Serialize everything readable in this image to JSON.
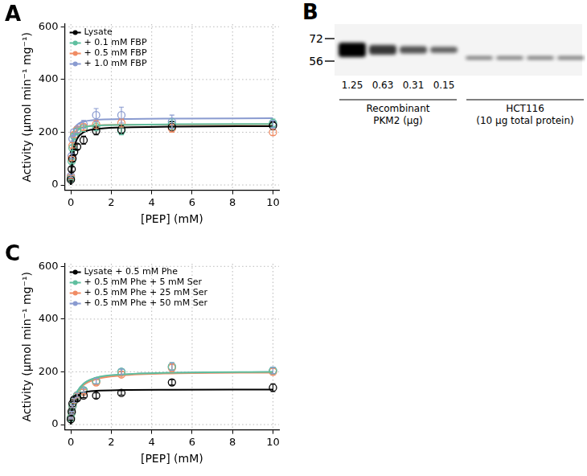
{
  "chart_data": [
    {
      "panel": "A",
      "type": "scatter",
      "x_label": "[PEP] (mM)",
      "y_label": "Activity (μmol min⁻¹ mg⁻¹)",
      "x": [
        0,
        0.04,
        0.08,
        0.16,
        0.31,
        0.63,
        1.25,
        2.5,
        5,
        10
      ],
      "xlim": [
        -0.3,
        10.3
      ],
      "xticks": [
        0,
        2,
        4,
        6,
        8,
        10
      ],
      "ylim": [
        -20,
        610
      ],
      "yticks": [
        0,
        200,
        400,
        600
      ],
      "grid": true,
      "legend": "top-left",
      "series": [
        {
          "name": "Lysate",
          "color": "#000000",
          "marker": "circle",
          "line_style": "solid",
          "values": [
            20,
            60,
            100,
            125,
            145,
            170,
            205,
            210,
            220,
            225
          ],
          "errors": [
            5,
            8,
            10,
            10,
            10,
            15,
            15,
            15,
            20,
            15
          ],
          "fit": [
            0,
            55,
            95,
            140,
            175,
            200,
            212,
            218,
            221,
            223
          ]
        },
        {
          "name": "+ 0.1 mM FBP",
          "color": "#5fbf9f",
          "marker": "circle",
          "line_style": "solid",
          "values": [
            25,
            90,
            140,
            185,
            205,
            215,
            220,
            205,
            230,
            235
          ],
          "errors": [
            5,
            8,
            10,
            10,
            10,
            12,
            15,
            15,
            20,
            15
          ],
          "fit": [
            0,
            90,
            140,
            180,
            205,
            218,
            225,
            228,
            230,
            231
          ]
        },
        {
          "name": "+ 0.5 mM FBP",
          "color": "#f08c64",
          "marker": "circle",
          "line_style": "solid",
          "values": [
            30,
            100,
            150,
            190,
            210,
            220,
            230,
            235,
            215,
            200
          ],
          "errors": [
            5,
            8,
            10,
            10,
            10,
            12,
            15,
            15,
            15,
            12
          ],
          "fit": [
            0,
            100,
            150,
            190,
            210,
            220,
            226,
            228,
            229,
            230
          ]
        },
        {
          "name": "+ 1.0 mM FBP",
          "color": "#8a9bd0",
          "marker": "circle",
          "line_style": "solid",
          "values": [
            35,
            110,
            175,
            200,
            210,
            230,
            265,
            265,
            240,
            230
          ],
          "errors": [
            5,
            10,
            10,
            12,
            12,
            15,
            25,
            30,
            25,
            15
          ],
          "fit": [
            0,
            120,
            175,
            210,
            228,
            240,
            247,
            250,
            252,
            253
          ]
        }
      ]
    },
    {
      "panel": "C",
      "type": "scatter",
      "x_label": "[PEP] (mM)",
      "y_label": "Activity (μmol min⁻¹ mg⁻¹)",
      "x": [
        0,
        0.04,
        0.08,
        0.16,
        0.31,
        0.63,
        1.25,
        2.5,
        5,
        10
      ],
      "xlim": [
        -0.3,
        10.3
      ],
      "xticks": [
        0,
        2,
        4,
        6,
        8,
        10
      ],
      "ylim": [
        -20,
        610
      ],
      "yticks": [
        0,
        200,
        400,
        600
      ],
      "grid": true,
      "legend": "top-left",
      "series": [
        {
          "name": "Lysate + 0.5 mM Phe",
          "color": "#000000",
          "marker": "circle",
          "line_style": "solid",
          "values": [
            20,
            50,
            80,
            95,
            100,
            110,
            110,
            120,
            160,
            140
          ],
          "errors": [
            3,
            5,
            5,
            8,
            8,
            8,
            10,
            8,
            10,
            15
          ],
          "fit": [
            0,
            45,
            70,
            95,
            112,
            122,
            128,
            131,
            132,
            133
          ]
        },
        {
          "name": "+ 0.5 mM Phe + 5 mM Ser",
          "color": "#5fbf9f",
          "marker": "circle",
          "line_style": "solid",
          "values": [
            25,
            45,
            70,
            90,
            110,
            130,
            165,
            200,
            220,
            205
          ],
          "errors": [
            3,
            5,
            5,
            8,
            8,
            8,
            10,
            10,
            15,
            12
          ],
          "fit": [
            0,
            40,
            65,
            95,
            125,
            155,
            178,
            190,
            197,
            200
          ]
        },
        {
          "name": "+ 0.5 mM Phe + 25 mM Ser",
          "color": "#f08c64",
          "marker": "circle",
          "line_style": "solid",
          "values": [
            25,
            45,
            70,
            90,
            110,
            125,
            160,
            190,
            215,
            200
          ],
          "errors": [
            3,
            5,
            5,
            8,
            8,
            8,
            10,
            10,
            15,
            12
          ],
          "fit": [
            0,
            38,
            62,
            90,
            120,
            150,
            172,
            186,
            194,
            197
          ]
        },
        {
          "name": "+ 0.5 mM Phe + 50 mM Ser",
          "color": "#8a9bd0",
          "marker": "circle",
          "line_style": "solid",
          "values": [
            25,
            45,
            70,
            92,
            112,
            130,
            165,
            200,
            220,
            205
          ],
          "errors": [
            3,
            5,
            5,
            8,
            8,
            8,
            10,
            10,
            15,
            12
          ],
          "fit": [
            0,
            40,
            65,
            95,
            125,
            155,
            177,
            189,
            196,
            199
          ]
        }
      ]
    }
  ],
  "blot": {
    "panel": "B",
    "ladder": [
      72,
      56
    ],
    "groups": [
      {
        "name": [
          "Recombinant",
          "PKM2 (μg)"
        ],
        "lanes": [
          1.25,
          0.63,
          0.31,
          0.15
        ]
      },
      {
        "name": [
          "HCT116",
          "(10 μg total protein)"
        ],
        "lanes": [
          null,
          null,
          null,
          null
        ]
      }
    ]
  }
}
